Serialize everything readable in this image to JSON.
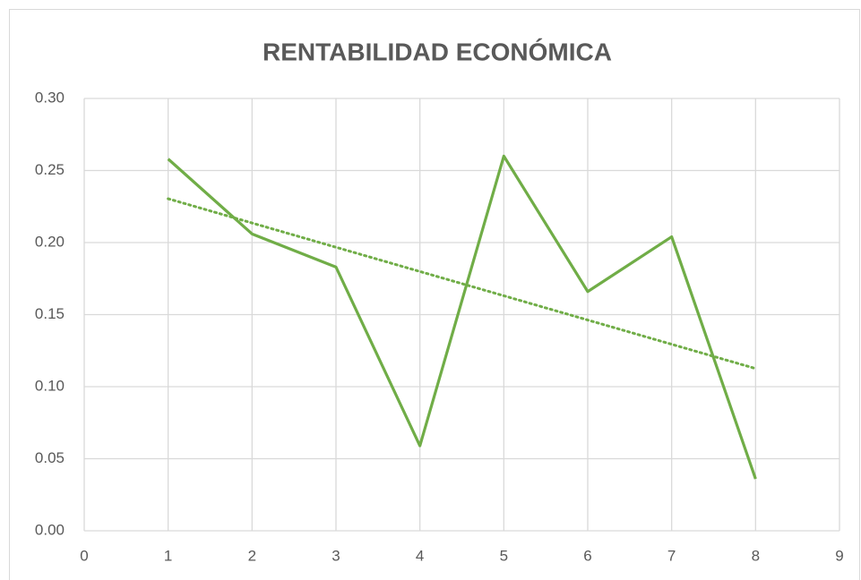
{
  "chart_data": {
    "type": "line",
    "title": "RENTABILIDAD ECONÓMICA",
    "x": [
      1,
      2,
      3,
      4,
      5,
      6,
      7,
      8
    ],
    "series": [
      {
        "color": "#70ad47",
        "values": [
          0.258,
          0.206,
          0.183,
          0.059,
          0.26,
          0.166,
          0.204,
          0.036
        ]
      }
    ],
    "trendline": "linear",
    "xlim": [
      0,
      9
    ],
    "xticks": [
      0,
      1,
      2,
      3,
      4,
      5,
      6,
      7,
      8,
      9
    ],
    "ylim": [
      0,
      0.3
    ],
    "yticks": [
      {
        "value": 0,
        "label": "0.00"
      },
      {
        "value": 0.05,
        "label": "0.05"
      },
      {
        "value": 0.1,
        "label": "0.10"
      },
      {
        "value": 0.15,
        "label": "0.15"
      },
      {
        "value": 0.2,
        "label": "0.20"
      },
      {
        "value": 0.25,
        "label": "0.25"
      },
      {
        "value": 0.3,
        "label": "0.30"
      }
    ],
    "grid": true
  }
}
